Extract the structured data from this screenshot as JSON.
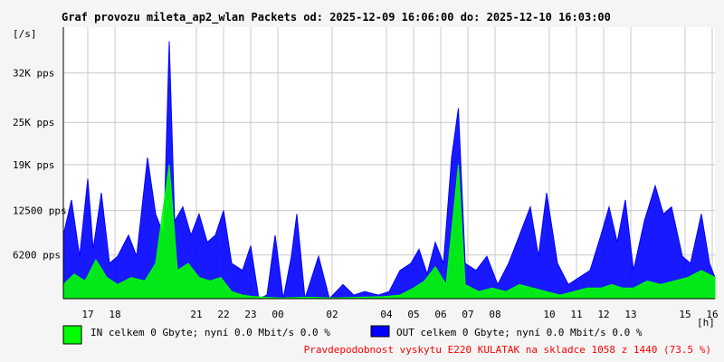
{
  "colors": {
    "background": "#f5f5f5",
    "plot_background": "#ffffff",
    "grid": "#c8c8c8",
    "in_series": "#00ff00",
    "out_series": "#0000ff",
    "notice": "#ff0000"
  },
  "chart_data": {
    "type": "area",
    "title": "Graf provozu mileta_ap2_wlan Packets od: 2025-12-09 16:06:00 do: 2025-12-10 16:03:00",
    "ylabel": "[/s]",
    "xlabel": "[h]",
    "ylim": [
      0,
      38500
    ],
    "y_ticks": [
      {
        "value": 6200,
        "label": "6200 pps"
      },
      {
        "value": 12500,
        "label": "12500 pps"
      },
      {
        "value": 19000,
        "label": "19K pps"
      },
      {
        "value": 25000,
        "label": "25K pps"
      },
      {
        "value": 32000,
        "label": "32K pps"
      }
    ],
    "x_unit": "hours since 16:06",
    "xlim": [
      0,
      24
    ],
    "x_ticks": [
      {
        "value": 0.9,
        "label": "17"
      },
      {
        "value": 1.9,
        "label": "18"
      },
      {
        "value": 4.9,
        "label": "21"
      },
      {
        "value": 5.9,
        "label": "22"
      },
      {
        "value": 6.9,
        "label": "23"
      },
      {
        "value": 7.9,
        "label": "00"
      },
      {
        "value": 9.9,
        "label": "02"
      },
      {
        "value": 11.9,
        "label": "04"
      },
      {
        "value": 12.9,
        "label": "05"
      },
      {
        "value": 13.9,
        "label": "06"
      },
      {
        "value": 14.9,
        "label": "07"
      },
      {
        "value": 15.9,
        "label": "08"
      },
      {
        "value": 17.9,
        "label": "10"
      },
      {
        "value": 18.9,
        "label": "11"
      },
      {
        "value": 19.9,
        "label": "12"
      },
      {
        "value": 20.9,
        "label": "13"
      },
      {
        "value": 22.9,
        "label": "15"
      },
      {
        "value": 23.9,
        "label": "16"
      }
    ],
    "series": [
      {
        "name": "OUT",
        "color": "#0000ff",
        "points": [
          [
            0,
            9000
          ],
          [
            0.3,
            14000
          ],
          [
            0.6,
            6000
          ],
          [
            0.9,
            17000
          ],
          [
            1.1,
            7000
          ],
          [
            1.4,
            15000
          ],
          [
            1.7,
            5000
          ],
          [
            2.0,
            6000
          ],
          [
            2.4,
            9000
          ],
          [
            2.7,
            6000
          ],
          [
            3.1,
            20000
          ],
          [
            3.4,
            12000
          ],
          [
            3.7,
            9000
          ],
          [
            3.9,
            36500
          ],
          [
            4.1,
            11000
          ],
          [
            4.4,
            13000
          ],
          [
            4.7,
            9000
          ],
          [
            5.0,
            12000
          ],
          [
            5.3,
            8000
          ],
          [
            5.6,
            9000
          ],
          [
            5.9,
            12500
          ],
          [
            6.2,
            5000
          ],
          [
            6.6,
            4000
          ],
          [
            6.9,
            7500
          ],
          [
            7.2,
            0
          ],
          [
            7.5,
            500
          ],
          [
            7.8,
            9000
          ],
          [
            8.1,
            0
          ],
          [
            8.4,
            6000
          ],
          [
            8.6,
            12000
          ],
          [
            8.9,
            0
          ],
          [
            9.4,
            6000
          ],
          [
            9.8,
            0
          ],
          [
            10.3,
            2000
          ],
          [
            10.7,
            500
          ],
          [
            11.1,
            1000
          ],
          [
            11.6,
            500
          ],
          [
            12.0,
            1000
          ],
          [
            12.4,
            4000
          ],
          [
            12.8,
            5000
          ],
          [
            13.1,
            7000
          ],
          [
            13.4,
            3500
          ],
          [
            13.7,
            8000
          ],
          [
            14.0,
            5000
          ],
          [
            14.3,
            20000
          ],
          [
            14.55,
            27000
          ],
          [
            14.8,
            5000
          ],
          [
            15.2,
            4000
          ],
          [
            15.6,
            6000
          ],
          [
            16.0,
            2000
          ],
          [
            16.4,
            5000
          ],
          [
            16.8,
            9000
          ],
          [
            17.2,
            13000
          ],
          [
            17.5,
            6000
          ],
          [
            17.8,
            15000
          ],
          [
            18.2,
            5000
          ],
          [
            18.6,
            2000
          ],
          [
            19.0,
            3000
          ],
          [
            19.4,
            4000
          ],
          [
            19.8,
            9000
          ],
          [
            20.1,
            13000
          ],
          [
            20.4,
            8000
          ],
          [
            20.7,
            14000
          ],
          [
            21.0,
            4000
          ],
          [
            21.4,
            11000
          ],
          [
            21.8,
            16000
          ],
          [
            22.1,
            12000
          ],
          [
            22.4,
            13000
          ],
          [
            22.8,
            6000
          ],
          [
            23.1,
            5000
          ],
          [
            23.5,
            12000
          ],
          [
            23.8,
            5000
          ],
          [
            24.0,
            3000
          ]
        ]
      },
      {
        "name": "IN",
        "color": "#00ff00",
        "points": [
          [
            0,
            2000
          ],
          [
            0.4,
            3500
          ],
          [
            0.8,
            2500
          ],
          [
            1.2,
            5500
          ],
          [
            1.6,
            3000
          ],
          [
            2.0,
            2000
          ],
          [
            2.5,
            3000
          ],
          [
            3.0,
            2500
          ],
          [
            3.4,
            5000
          ],
          [
            3.9,
            19000
          ],
          [
            4.2,
            4000
          ],
          [
            4.6,
            5000
          ],
          [
            5.0,
            3000
          ],
          [
            5.4,
            2500
          ],
          [
            5.8,
            3000
          ],
          [
            6.2,
            1000
          ],
          [
            6.6,
            500
          ],
          [
            7.0,
            300
          ],
          [
            8.0,
            100
          ],
          [
            9.0,
            200
          ],
          [
            10.0,
            100
          ],
          [
            11.0,
            200
          ],
          [
            11.8,
            300
          ],
          [
            12.4,
            500
          ],
          [
            12.9,
            1500
          ],
          [
            13.3,
            2500
          ],
          [
            13.7,
            4500
          ],
          [
            14.1,
            2000
          ],
          [
            14.55,
            19000
          ],
          [
            14.8,
            2000
          ],
          [
            15.3,
            1000
          ],
          [
            15.8,
            1500
          ],
          [
            16.3,
            1000
          ],
          [
            16.8,
            2000
          ],
          [
            17.3,
            1500
          ],
          [
            17.8,
            1000
          ],
          [
            18.3,
            500
          ],
          [
            18.8,
            1000
          ],
          [
            19.3,
            1500
          ],
          [
            19.8,
            1500
          ],
          [
            20.2,
            2000
          ],
          [
            20.6,
            1500
          ],
          [
            21.0,
            1500
          ],
          [
            21.5,
            2500
          ],
          [
            22.0,
            2000
          ],
          [
            22.5,
            2500
          ],
          [
            23.0,
            3000
          ],
          [
            23.5,
            4000
          ],
          [
            24.0,
            3000
          ]
        ]
      }
    ]
  },
  "legend": {
    "in_text": "IN celkem 0 Gbyte; nyní   0.0 Mbit/s 0.0 %",
    "out_text": "OUT celkem 0 Gbyte; nyní   0.0 Mbit/s 0.0 %"
  },
  "notice": "Pravdepodobnost vyskytu E220 KULATAK na skladce 1058 z 1440 (73.5 %)"
}
